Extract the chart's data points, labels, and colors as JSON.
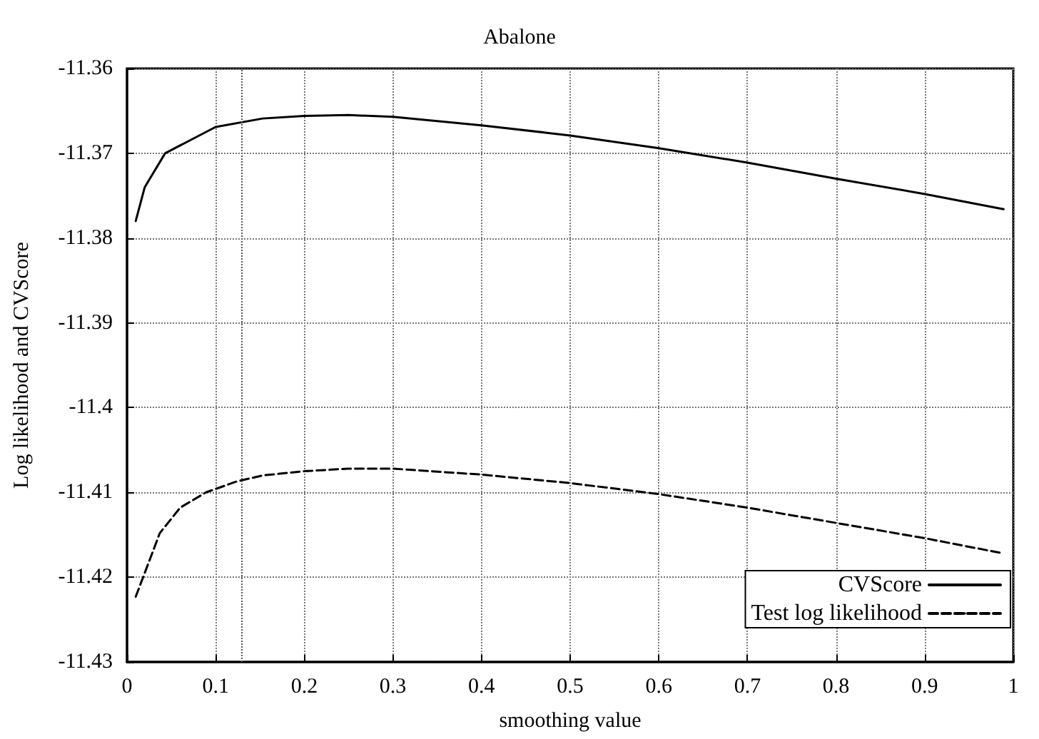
{
  "chart_data": {
    "type": "line",
    "title": "Abalone",
    "xlabel": "smoothing value",
    "ylabel": "Log likelihood and CVScore",
    "x": [
      0.0098,
      0.02,
      0.043,
      0.1,
      0.153,
      0.2,
      0.25,
      0.3,
      0.4,
      0.5,
      0.6,
      0.7,
      0.8,
      0.9,
      0.989
    ],
    "series": [
      {
        "name": "CVScore",
        "color": "#000000",
        "line_style": "solid",
        "values": [
          -11.378,
          -11.374,
          -11.37,
          -11.3669,
          -11.3659,
          -11.3656,
          -11.3655,
          -11.3657,
          -11.3667,
          -11.3679,
          -11.3694,
          -11.3711,
          -11.373,
          -11.3748,
          -11.3766
        ]
      },
      {
        "name": "Test log likelihood",
        "color": "#000000",
        "line_style": "dashed",
        "x": [
          0.0098,
          0.02,
          0.037,
          0.06,
          0.089,
          0.124,
          0.153,
          0.2,
          0.25,
          0.3,
          0.4,
          0.5,
          0.6,
          0.7,
          0.8,
          0.9,
          0.989
        ],
        "values": [
          -11.4223,
          -11.4195,
          -11.4148,
          -11.4118,
          -11.41,
          -11.4087,
          -11.408,
          -11.4075,
          -11.4072,
          -11.4072,
          -11.4079,
          -11.4089,
          -11.4102,
          -11.4118,
          -11.4136,
          -11.4154,
          -11.4172
        ]
      }
    ],
    "xlim": [
      0,
      1
    ],
    "xticks": [
      0,
      0.1,
      0.2,
      0.3,
      0.4,
      0.5,
      0.6,
      0.7,
      0.8,
      0.9,
      1
    ],
    "ylim": [
      -11.43,
      -11.36
    ],
    "yticks": [
      -11.43,
      -11.42,
      -11.41,
      -11.4,
      -11.39,
      -11.38,
      -11.37,
      -11.36
    ],
    "ref_lines": [
      {
        "axis": "x",
        "value": 0.133,
        "color": "#555555",
        "line_style": "dotted"
      }
    ],
    "grid": true,
    "legend": "bottom right",
    "marker": "none"
  }
}
